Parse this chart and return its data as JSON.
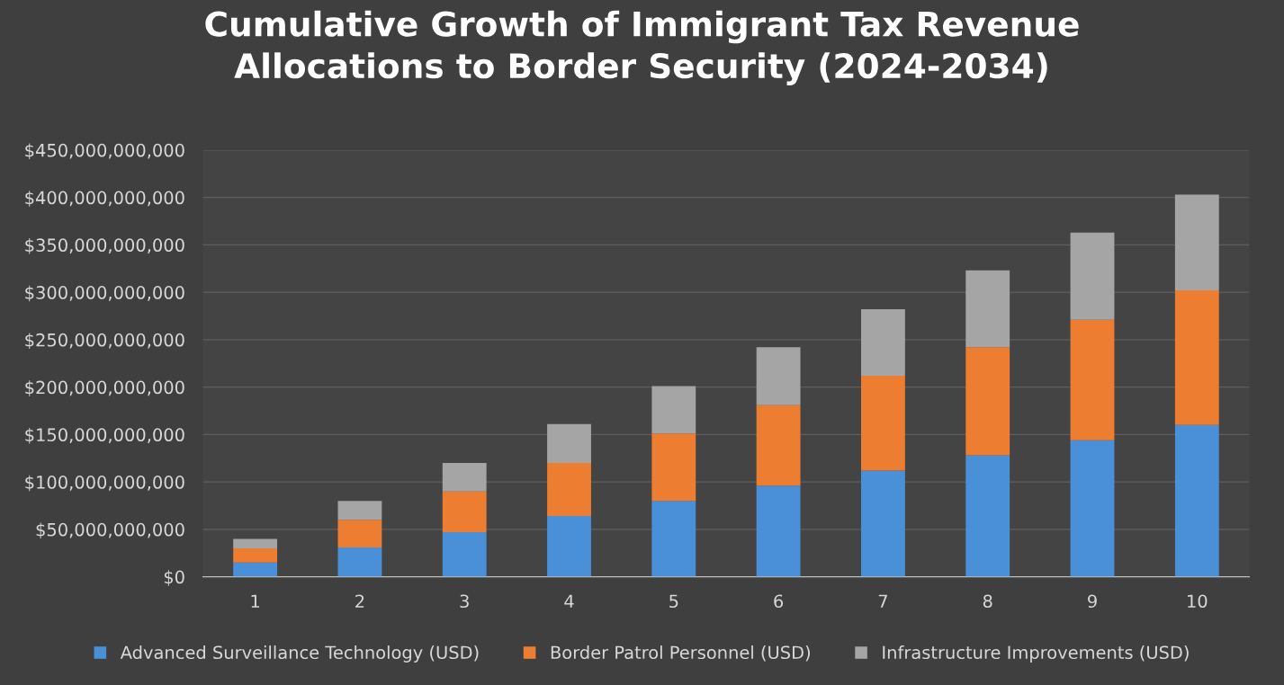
{
  "chart_data": {
    "type": "bar",
    "stacked": true,
    "title": "Cumulative Growth of Immigrant Tax Revenue\nAllocations to Border Security (2024-2034)",
    "categories": [
      "1",
      "2",
      "3",
      "4",
      "5",
      "6",
      "7",
      "8",
      "9",
      "10"
    ],
    "series": [
      {
        "name": "Advanced Surveillance Technology (USD)",
        "color": "#4a90d9",
        "values": [
          15000000000,
          31000000000,
          47000000000,
          64000000000,
          80000000000,
          96000000000,
          112000000000,
          128000000000,
          144000000000,
          160000000000
        ]
      },
      {
        "name": "Border Patrol Personnel (USD)",
        "color": "#ed7d31",
        "values": [
          15000000000,
          29000000000,
          43000000000,
          56000000000,
          71000000000,
          85000000000,
          100000000000,
          114000000000,
          127000000000,
          142000000000
        ]
      },
      {
        "name": "Infrastructure Improvements (USD)",
        "color": "#a5a5a5",
        "values": [
          10000000000,
          20000000000,
          30000000000,
          41000000000,
          50000000000,
          61000000000,
          70000000000,
          81000000000,
          92000000000,
          101000000000
        ]
      }
    ],
    "ylim": [
      0,
      450000000000
    ],
    "yticks": [
      {
        "value": 0,
        "label": "$0"
      },
      {
        "value": 50000000000,
        "label": "$50,000,000,000"
      },
      {
        "value": 100000000000,
        "label": "$100,000,000,000"
      },
      {
        "value": 150000000000,
        "label": "$150,000,000,000"
      },
      {
        "value": 200000000000,
        "label": "$200,000,000,000"
      },
      {
        "value": 250000000000,
        "label": "$250,000,000,000"
      },
      {
        "value": 300000000000,
        "label": "$300,000,000,000"
      },
      {
        "value": 350000000000,
        "label": "$350,000,000,000"
      },
      {
        "value": 400000000000,
        "label": "$400,000,000,000"
      },
      {
        "value": 450000000000,
        "label": "$450,000,000,000"
      }
    ],
    "grid": "y",
    "legend": "bottom"
  }
}
